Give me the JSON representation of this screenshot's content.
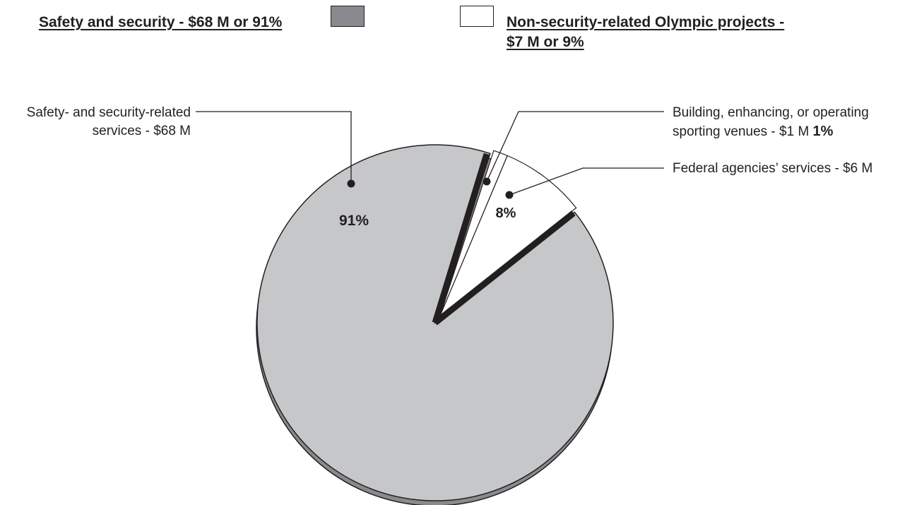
{
  "chart_data": {
    "type": "pie",
    "legend": [
      {
        "label_line1": "Safety and security - $68 M or 91%",
        "label_line2": "",
        "color": "#888a8d"
      },
      {
        "label_line1": "Non-security-related Olympic projects -",
        "label_line2": "$7 M or 9%",
        "color": "#ffffff"
      }
    ],
    "slices": [
      {
        "name_line1": "Safety- and security-related",
        "name_line2": "services - $68 M",
        "value": 68,
        "percent_label": "91%",
        "group": "Safety and security",
        "color": "#c6c7c9"
      },
      {
        "name_line1": "Building, enhancing, or operating",
        "name_line2": "sporting venues - $1 M",
        "value": 1,
        "percent_label": "1%",
        "group": "Non-security-related Olympic projects",
        "color": "#ffffff"
      },
      {
        "name_line1": "Federal agencies’ services -  $6 M",
        "name_line2": "",
        "value": 6,
        "percent_label": "8%",
        "group": "Non-security-related Olympic projects",
        "color": "#ffffff"
      }
    ],
    "colors": {
      "pie_face": "#c6c7c9",
      "pie_side": "#888a8d",
      "outline": "#231f20",
      "divider": "#231f20"
    }
  }
}
